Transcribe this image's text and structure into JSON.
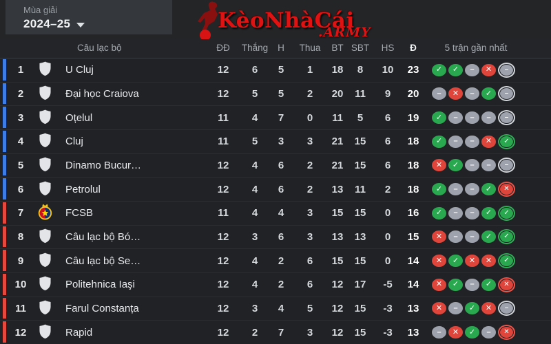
{
  "season": {
    "label": "Mùa giải",
    "value": "2024–25"
  },
  "logo": {
    "brand": "KèoNhàCái",
    "suffix": ".ARMY",
    "brand_color": "#e01212"
  },
  "colors": {
    "zones": {
      "blue": "#3d7de8",
      "red": "#e6483e"
    },
    "form": {
      "W": "#2aa850",
      "D": "#9da2ad",
      "L": "#e0453c"
    },
    "ring": {
      "W": "#2fae57",
      "D": "#d3d6db",
      "L": "#ef5348"
    }
  },
  "form_glyphs": {
    "W": "✓",
    "D": "–",
    "L": "✕"
  },
  "form_names": {
    "W": "win",
    "D": "draw",
    "L": "loss"
  },
  "table": {
    "headers": {
      "club": "Câu lạc bộ",
      "played": "ĐĐ",
      "wins": "Thắng",
      "draws": "H",
      "losses": "Thua",
      "goals_for": "BT",
      "goals_against": "SBT",
      "goal_diff": "HS",
      "points": "Đ",
      "form": "5 trận gần nhất"
    },
    "rows": [
      {
        "pos": "1",
        "team": "U Cluj",
        "badge": "shield",
        "zone": "blue",
        "p": "12",
        "w": "6",
        "d": "5",
        "l": "1",
        "gf": "18",
        "ga": "8",
        "gd": "10",
        "pts": "23",
        "form": [
          "W",
          "W",
          "D",
          "L",
          "D"
        ]
      },
      {
        "pos": "2",
        "team": "Đại học Craiova",
        "badge": "shield",
        "zone": "blue",
        "p": "12",
        "w": "5",
        "d": "5",
        "l": "2",
        "gf": "20",
        "ga": "11",
        "gd": "9",
        "pts": "20",
        "form": [
          "D",
          "L",
          "D",
          "W",
          "D"
        ]
      },
      {
        "pos": "3",
        "team": "Oțelul",
        "badge": "shield",
        "zone": "blue",
        "p": "11",
        "w": "4",
        "d": "7",
        "l": "0",
        "gf": "11",
        "ga": "5",
        "gd": "6",
        "pts": "19",
        "form": [
          "W",
          "D",
          "D",
          "D",
          "D"
        ]
      },
      {
        "pos": "4",
        "team": "Cluj",
        "badge": "shield",
        "zone": "blue",
        "p": "11",
        "w": "5",
        "d": "3",
        "l": "3",
        "gf": "21",
        "ga": "15",
        "gd": "6",
        "pts": "18",
        "form": [
          "W",
          "D",
          "D",
          "L",
          "W"
        ]
      },
      {
        "pos": "5",
        "team": "Dinamo Bucur…",
        "badge": "shield",
        "zone": "blue",
        "p": "12",
        "w": "4",
        "d": "6",
        "l": "2",
        "gf": "21",
        "ga": "15",
        "gd": "6",
        "pts": "18",
        "form": [
          "L",
          "W",
          "D",
          "D",
          "D"
        ]
      },
      {
        "pos": "6",
        "team": "Petrolul",
        "badge": "shield",
        "zone": "blue",
        "p": "12",
        "w": "4",
        "d": "6",
        "l": "2",
        "gf": "13",
        "ga": "11",
        "gd": "2",
        "pts": "18",
        "form": [
          "W",
          "D",
          "D",
          "W",
          "L"
        ]
      },
      {
        "pos": "7",
        "team": "FCSB",
        "badge": "fcsb",
        "zone": "red",
        "p": "11",
        "w": "4",
        "d": "4",
        "l": "3",
        "gf": "15",
        "ga": "15",
        "gd": "0",
        "pts": "16",
        "form": [
          "W",
          "D",
          "D",
          "W",
          "W"
        ]
      },
      {
        "pos": "8",
        "team": "Câu lạc bộ Bó…",
        "badge": "shield",
        "zone": "red",
        "p": "12",
        "w": "3",
        "d": "6",
        "l": "3",
        "gf": "13",
        "ga": "13",
        "gd": "0",
        "pts": "15",
        "form": [
          "L",
          "D",
          "D",
          "W",
          "W"
        ]
      },
      {
        "pos": "9",
        "team": "Câu lạc bộ Se…",
        "badge": "shield",
        "zone": "red",
        "p": "12",
        "w": "4",
        "d": "2",
        "l": "6",
        "gf": "15",
        "ga": "15",
        "gd": "0",
        "pts": "14",
        "form": [
          "L",
          "W",
          "L",
          "L",
          "W"
        ]
      },
      {
        "pos": "10",
        "team": "Politehnica Iaşi",
        "badge": "shield",
        "zone": "red",
        "p": "12",
        "w": "4",
        "d": "2",
        "l": "6",
        "gf": "12",
        "ga": "17",
        "gd": "-5",
        "pts": "14",
        "form": [
          "L",
          "W",
          "D",
          "W",
          "L"
        ]
      },
      {
        "pos": "11",
        "team": "Farul Constanța",
        "badge": "shield",
        "zone": "red",
        "p": "12",
        "w": "3",
        "d": "4",
        "l": "5",
        "gf": "12",
        "ga": "15",
        "gd": "-3",
        "pts": "13",
        "form": [
          "L",
          "D",
          "W",
          "L",
          "D"
        ]
      },
      {
        "pos": "12",
        "team": "Rapid",
        "badge": "shield",
        "zone": "red",
        "p": "12",
        "w": "2",
        "d": "7",
        "l": "3",
        "gf": "12",
        "ga": "15",
        "gd": "-3",
        "pts": "13",
        "form": [
          "D",
          "L",
          "W",
          "D",
          "L"
        ]
      }
    ]
  }
}
